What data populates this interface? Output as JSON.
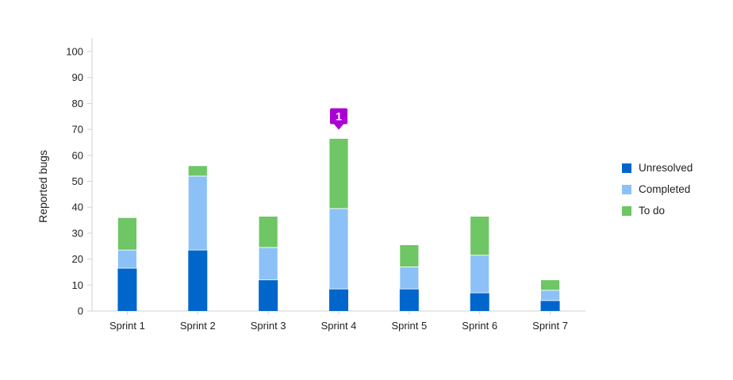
{
  "chart_data": {
    "type": "bar",
    "stacked": true,
    "title": "",
    "xlabel": "",
    "ylabel": "Reported bugs",
    "ylim": [
      0,
      100
    ],
    "yticks": [
      0,
      10,
      20,
      30,
      40,
      50,
      60,
      70,
      80,
      90,
      100
    ],
    "categories": [
      "Sprint 1",
      "Sprint 2",
      "Sprint 3",
      "Sprint 4",
      "Sprint 5",
      "Sprint 6",
      "Sprint 7"
    ],
    "series": [
      {
        "name": "Unresolved",
        "color": "#0066cc",
        "values": [
          16.5,
          23.5,
          12,
          8.5,
          8.5,
          7,
          4
        ]
      },
      {
        "name": "Completed",
        "color": "#8bc1f7",
        "values": [
          7,
          28.5,
          12.5,
          31,
          8.5,
          14.5,
          4
        ]
      },
      {
        "name": "To do",
        "color": "#6ec664",
        "values": [
          12.5,
          4,
          12,
          27,
          8.5,
          15,
          4
        ]
      }
    ],
    "annotations": [
      {
        "category": "Sprint 4",
        "label": "1",
        "color": "#aa00d4"
      }
    ],
    "legend_position": "right",
    "grid": false
  }
}
